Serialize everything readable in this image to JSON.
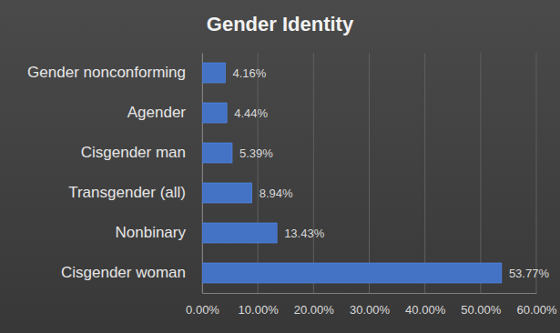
{
  "chart_data": {
    "type": "bar",
    "title": "Gender Identity",
    "orientation": "horizontal",
    "categories": [
      "Gender nonconforming",
      "Agender",
      "Cisgender man",
      "Transgender (all)",
      "Nonbinary",
      "Cisgender woman"
    ],
    "values": [
      4.16,
      4.44,
      5.39,
      8.94,
      13.43,
      53.77
    ],
    "value_labels": [
      "4.16%",
      "4.44%",
      "5.39%",
      "8.94%",
      "13.43%",
      "53.77%"
    ],
    "data_labels": true,
    "color": "#4472c4",
    "xlim": [
      0,
      60
    ],
    "xticks": [
      {
        "value": 0,
        "label": "0.00%"
      },
      {
        "value": 10,
        "label": "10.00%"
      },
      {
        "value": 20,
        "label": "20.00%"
      },
      {
        "value": 30,
        "label": "30.00%"
      },
      {
        "value": 40,
        "label": "40.00%"
      },
      {
        "value": 50,
        "label": "50.00%"
      },
      {
        "value": 60,
        "label": "60.00%"
      }
    ],
    "grid": true
  }
}
